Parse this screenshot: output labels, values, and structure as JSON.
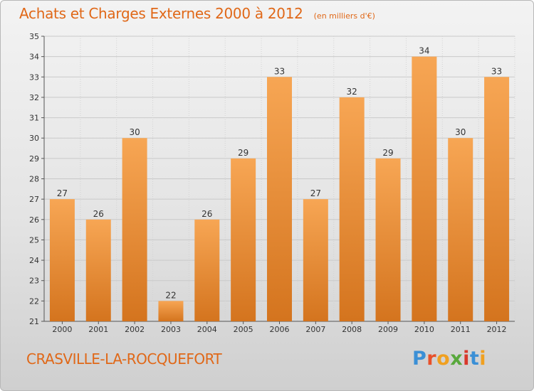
{
  "header": {
    "title": "Achats et Charges Externes 2000 à 2012",
    "subtitle": "(en milliers d'€)"
  },
  "footer": {
    "commune": "CRASVILLE-LA-ROCQUEFORT",
    "logo": [
      "P",
      "r",
      "o",
      "x",
      "i",
      "t",
      "i"
    ]
  },
  "chart_data": {
    "type": "bar",
    "title": "Achats et Charges Externes 2000 à 2012",
    "subtitle": "(en milliers d'€)",
    "categories": [
      "2000",
      "2001",
      "2002",
      "2003",
      "2004",
      "2005",
      "2006",
      "2007",
      "2008",
      "2009",
      "2010",
      "2011",
      "2012"
    ],
    "values": [
      27,
      26,
      30,
      22,
      26,
      29,
      33,
      27,
      32,
      29,
      34,
      30,
      33
    ],
    "ylim": [
      21,
      35
    ],
    "yticks": [
      21,
      22,
      23,
      24,
      25,
      26,
      27,
      28,
      29,
      30,
      31,
      32,
      33,
      34,
      35
    ],
    "grid": true,
    "data_labels": true,
    "bar_color_top": "#f7a654",
    "bar_color_bottom": "#d4741e"
  }
}
